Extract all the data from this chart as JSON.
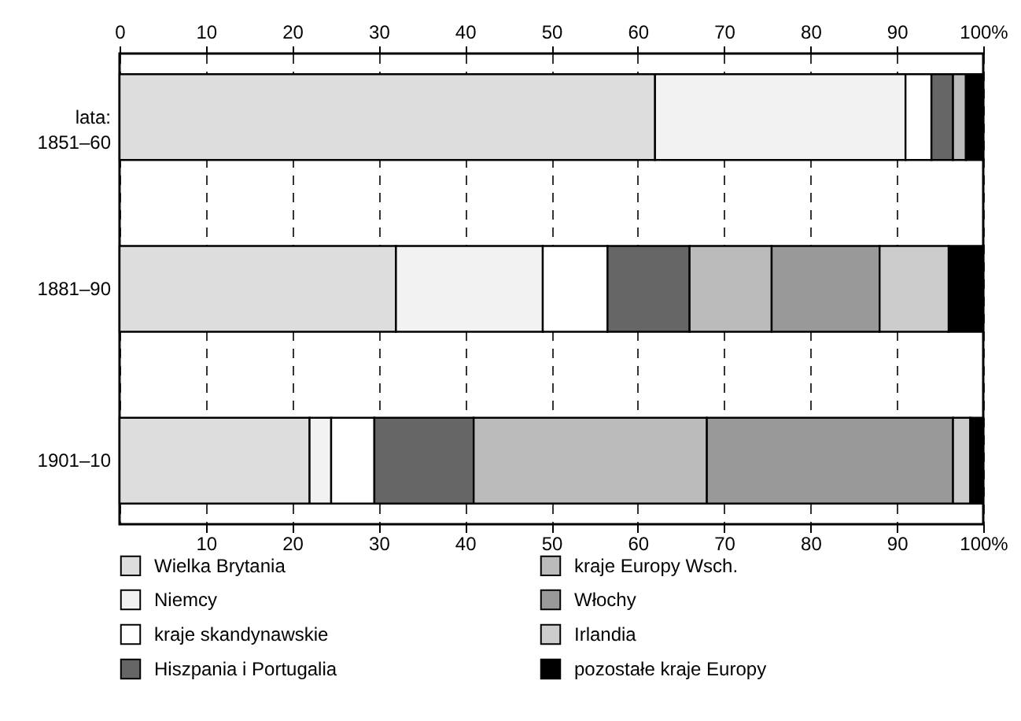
{
  "chart_data": {
    "type": "bar",
    "orientation": "horizontal",
    "stacked": true,
    "categories": [
      "lata:\n1851–60",
      "1881–90",
      "1901–10"
    ],
    "series": [
      {
        "name": "Wielka Brytania",
        "color": "#dddddd",
        "values": [
          62,
          32,
          22
        ]
      },
      {
        "name": "Niemcy",
        "color": "#f2f2f2",
        "values": [
          29,
          17,
          2.5
        ]
      },
      {
        "name": "kraje skandynawskie",
        "color": "#ffffff",
        "values": [
          3,
          7.5,
          5
        ]
      },
      {
        "name": "Hiszpania i Portugalia",
        "color": "#666666",
        "values": [
          2.5,
          9.5,
          11.5
        ]
      },
      {
        "name": "kraje Europy Wsch.",
        "color": "#bbbbbb",
        "values": [
          1.5,
          9.5,
          27
        ]
      },
      {
        "name": "Włochy",
        "color": "#999999",
        "values": [
          0,
          12.5,
          28.5
        ]
      },
      {
        "name": "Irlandia",
        "color": "#cccccc",
        "values": [
          0,
          8,
          2
        ]
      },
      {
        "name": "pozostałe kraje Europy",
        "color": "#000000",
        "values": [
          2,
          4,
          1.5
        ]
      }
    ],
    "xlim": [
      0,
      100
    ],
    "xticks": [
      10,
      20,
      30,
      40,
      50,
      60,
      70,
      80,
      90,
      {
        "value": 100,
        "label": "100%"
      }
    ],
    "x2lim": [
      0,
      100
    ],
    "x2ticks": [
      0,
      10,
      20,
      30,
      40,
      50,
      60,
      70,
      80,
      90,
      {
        "value": 100,
        "label": "100%"
      }
    ],
    "grid": "x",
    "legend": "bottom"
  }
}
